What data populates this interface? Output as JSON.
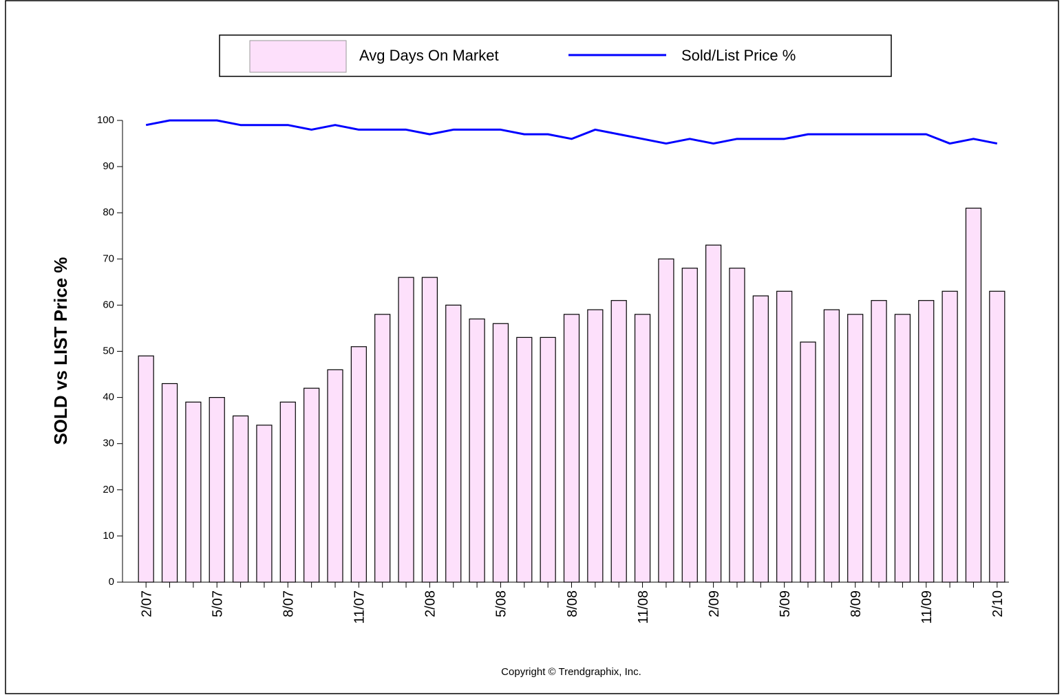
{
  "chart_data": {
    "type": "bar",
    "y_axis_label": "SOLD vs LIST Price %",
    "copyright": "Copyright © Trendgraphix, Inc.",
    "categories": [
      "2/07",
      null,
      null,
      "5/07",
      null,
      null,
      "8/07",
      null,
      null,
      "11/07",
      null,
      null,
      "2/08",
      null,
      null,
      "5/08",
      null,
      null,
      "8/08",
      null,
      null,
      "11/08",
      null,
      null,
      "2/09",
      null,
      null,
      "5/09",
      null,
      null,
      "8/09",
      null,
      null,
      "11/09",
      null,
      null,
      "2/10"
    ],
    "series": [
      {
        "name": "Avg Days On Market",
        "type": "bar",
        "color": "#fde0fb",
        "values": [
          49,
          43,
          39,
          40,
          36,
          34,
          39,
          42,
          46,
          51,
          58,
          66,
          66,
          60,
          57,
          56,
          53,
          53,
          58,
          59,
          61,
          58,
          70,
          68,
          73,
          68,
          62,
          63,
          52,
          59,
          58,
          61,
          58,
          61,
          63,
          81,
          63
        ]
      },
      {
        "name": "Sold/List Price %",
        "type": "line",
        "color": "#0000ff",
        "values": [
          99,
          100,
          100,
          100,
          99,
          99,
          99,
          98,
          99,
          98,
          98,
          98,
          97,
          98,
          98,
          98,
          97,
          97,
          96,
          98,
          97,
          96,
          95,
          96,
          95,
          96,
          96,
          96,
          97,
          97,
          97,
          97,
          97,
          97,
          95,
          96,
          95
        ]
      }
    ],
    "ylim": [
      0,
      100
    ],
    "yticks": [
      0,
      10,
      20,
      30,
      40,
      50,
      60,
      70,
      80,
      90,
      100
    ],
    "grid": false
  }
}
